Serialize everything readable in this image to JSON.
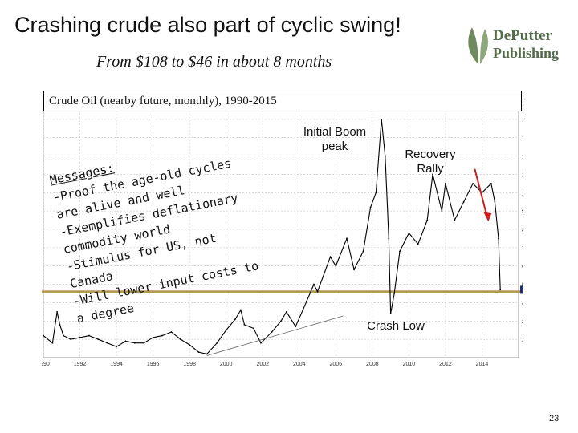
{
  "header": {
    "title": "Crashing crude also part of cyclic swing!",
    "subtitle": "From $108 to $46 in about 8 months"
  },
  "logo": {
    "line1": "DePutter",
    "line2": "Publishing"
  },
  "chart_data": {
    "type": "line",
    "title": "Crude Oil (nearby future, monthly), 1990-2015",
    "xlabel": "",
    "ylabel": "",
    "xlim": [
      1990,
      2016
    ],
    "ylim": [
      10,
      150
    ],
    "grid": true,
    "x_ticks": [
      "1990",
      "1992",
      "1994",
      "1996",
      "1998",
      "2000",
      "2002",
      "2004",
      "2006",
      "2008",
      "2010",
      "2012",
      "2014"
    ],
    "y_ticks": [
      "150.00",
      "140.00",
      "130.00",
      "120.00",
      "110.00",
      "100.00",
      "90.00",
      "80.00",
      "70.00",
      "60.00",
      "50.00",
      "40.00",
      "30.00",
      "20.00"
    ],
    "current_value_label": "47.45",
    "reference_line": 46,
    "series": [
      {
        "x": [
          1990.0,
          1990.5,
          1990.75,
          1990.9,
          1991.1,
          1991.5,
          1992,
          1992.5,
          1993,
          1993.5,
          1994,
          1994.5,
          1995,
          1995.5,
          1996,
          1996.5,
          1997,
          1997.5,
          1998,
          1998.5,
          1998.95,
          1999.5,
          2000,
          2000.5,
          2000.8,
          2001,
          2001.5,
          2001.9,
          2002.5,
          2003,
          2003.3,
          2003.8,
          2004.2,
          2004.8,
          2005,
          2005.7,
          2006,
          2006.6,
          2007,
          2007.5,
          2007.9,
          2008.2,
          2008.5,
          2008.7,
          2008.9,
          2009.0,
          2009.2,
          2009.5,
          2010,
          2010.5,
          2011,
          2011.3,
          2011.8,
          2012,
          2012.5,
          2013,
          2013.5,
          2014,
          2014.5,
          2014.7,
          2014.9,
          2015.0
        ],
        "y": [
          22,
          18,
          35,
          28,
          22,
          20,
          21,
          22,
          20,
          18,
          16,
          19,
          18,
          18,
          21,
          22,
          24,
          20,
          17,
          13,
          12,
          18,
          25,
          31,
          36,
          28,
          26,
          18,
          24,
          30,
          35,
          27,
          36,
          50,
          46,
          65,
          60,
          75,
          58,
          68,
          92,
          100,
          140,
          120,
          75,
          34,
          45,
          68,
          78,
          72,
          85,
          110,
          90,
          105,
          85,
          95,
          105,
          100,
          105,
          95,
          75,
          47
        ]
      }
    ]
  },
  "annotations": {
    "messages_heading": "Messages:",
    "messages_lines": [
      "-Proof the age-old cycles",
      "are alive and well",
      "-Exemplifies deflationary",
      "commodity world",
      "-Stimulus for US, not",
      "Canada",
      "-Will lower input costs to",
      "a degree"
    ],
    "initial_boom_peak": "Initial Boom peak",
    "recovery_rally": "Recovery Rally",
    "crash_low": "Crash Low"
  },
  "colors": {
    "price_line": "#000000",
    "reference_line": "#b39a54",
    "arrow": "#c81e1e",
    "grid": "#c8c8c8",
    "logo": "#556b4a"
  },
  "page": {
    "number": "23"
  }
}
